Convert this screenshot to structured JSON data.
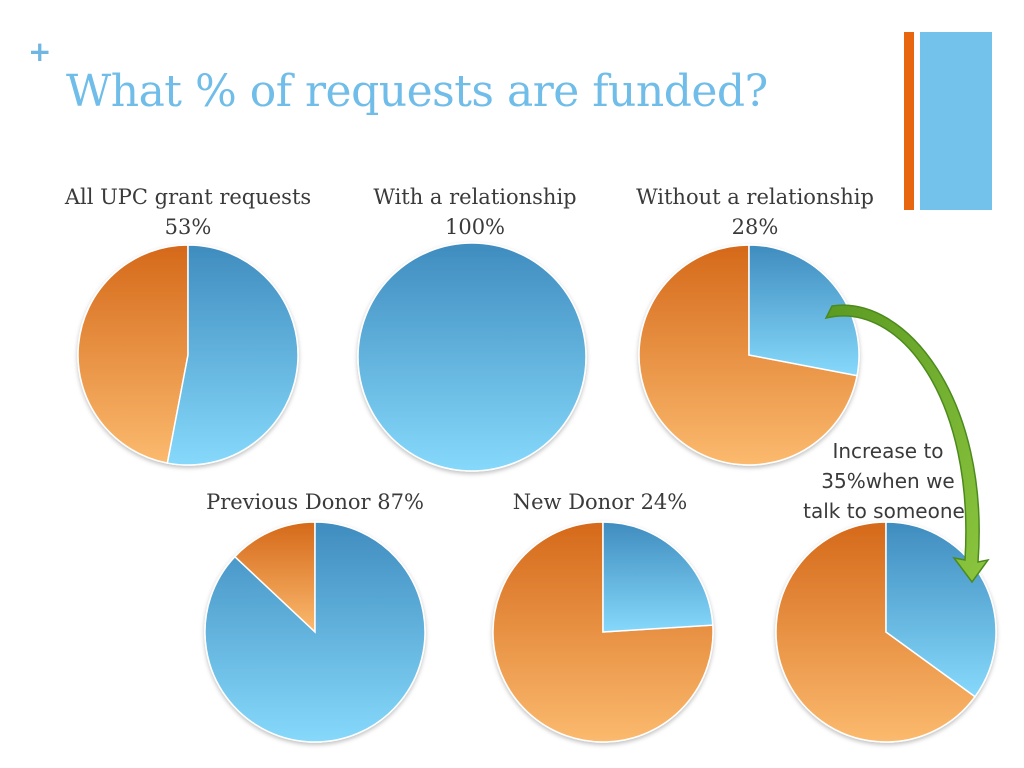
{
  "slide": {
    "plus": "+",
    "title": "What % of requests are funded?",
    "accent_colors": {
      "orange": "#e8660f",
      "blue": "#72c2ec"
    }
  },
  "annotation": {
    "lines": [
      "Increase to",
      "35%when we",
      "talk to someone!"
    ]
  },
  "chart_data": [
    {
      "type": "pie",
      "title": "All UPC grant requests",
      "value_label": "53%",
      "funded_pct": 53
    },
    {
      "type": "pie",
      "title": "With a relationship",
      "value_label": "100%",
      "funded_pct": 100
    },
    {
      "type": "pie",
      "title": "Without a relationship",
      "value_label": "28%",
      "funded_pct": 28
    },
    {
      "type": "pie",
      "title": "Previous Donor 87%",
      "value_label": "",
      "funded_pct": 87
    },
    {
      "type": "pie",
      "title": "New Donor 24%",
      "value_label": "",
      "funded_pct": 24
    },
    {
      "type": "pie",
      "title": "",
      "value_label": "",
      "funded_pct": 35
    }
  ],
  "colors": {
    "funded_top": "#3f8cbf",
    "funded_bottom": "#86d9fb",
    "unfunded_top": "#d5691a",
    "unfunded_bottom": "#fbba6e",
    "arrow": "#6aa62c"
  }
}
